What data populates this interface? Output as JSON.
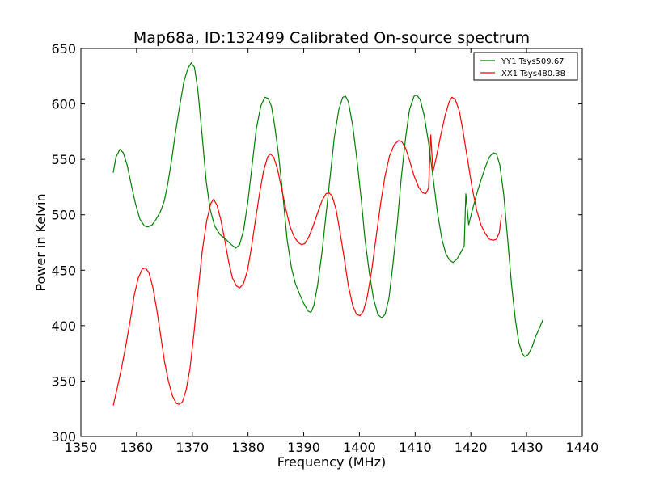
{
  "chart_data": {
    "type": "line",
    "title": "Map68a, ID:132499 Calibrated On-source spectrum",
    "xlabel": "Frequency (MHz)",
    "ylabel": "Power in Kelvin",
    "xlim": [
      1350,
      1440
    ],
    "ylim": [
      300,
      650
    ],
    "xticks": [
      1350,
      1360,
      1370,
      1380,
      1390,
      1400,
      1410,
      1420,
      1430,
      1440
    ],
    "yticks": [
      300,
      350,
      400,
      450,
      500,
      550,
      600,
      650
    ],
    "grid": false,
    "legend_position": "top-right",
    "series": [
      {
        "name": "YY1 Tsys509.67",
        "color": "#008000",
        "points": [
          [
            1355.8,
            538
          ],
          [
            1356.3,
            552
          ],
          [
            1357.0,
            559
          ],
          [
            1357.6,
            556
          ],
          [
            1358.3,
            545
          ],
          [
            1359.0,
            528
          ],
          [
            1359.8,
            510
          ],
          [
            1360.6,
            496
          ],
          [
            1361.4,
            490
          ],
          [
            1362.0,
            489
          ],
          [
            1362.8,
            491
          ],
          [
            1363.5,
            496
          ],
          [
            1364.3,
            503
          ],
          [
            1365.0,
            513
          ],
          [
            1365.6,
            528
          ],
          [
            1366.3,
            550
          ],
          [
            1367.0,
            575
          ],
          [
            1367.8,
            600
          ],
          [
            1368.5,
            620
          ],
          [
            1369.2,
            632
          ],
          [
            1369.8,
            637
          ],
          [
            1370.4,
            633
          ],
          [
            1371.0,
            612
          ],
          [
            1371.7,
            575
          ],
          [
            1372.5,
            530
          ],
          [
            1373.2,
            505
          ],
          [
            1374.0,
            490
          ],
          [
            1375.0,
            482
          ],
          [
            1376.0,
            478
          ],
          [
            1377.0,
            473
          ],
          [
            1377.8,
            470
          ],
          [
            1378.5,
            473
          ],
          [
            1379.2,
            486
          ],
          [
            1380.0,
            513
          ],
          [
            1380.8,
            548
          ],
          [
            1381.5,
            578
          ],
          [
            1382.3,
            598
          ],
          [
            1383.0,
            606
          ],
          [
            1383.6,
            605
          ],
          [
            1384.2,
            598
          ],
          [
            1384.8,
            580
          ],
          [
            1385.5,
            553
          ],
          [
            1386.3,
            515
          ],
          [
            1387.0,
            478
          ],
          [
            1387.8,
            452
          ],
          [
            1388.5,
            438
          ],
          [
            1389.3,
            428
          ],
          [
            1390.0,
            420
          ],
          [
            1390.8,
            413
          ],
          [
            1391.3,
            412
          ],
          [
            1391.8,
            418
          ],
          [
            1392.5,
            437
          ],
          [
            1393.3,
            467
          ],
          [
            1394.0,
            500
          ],
          [
            1394.8,
            537
          ],
          [
            1395.5,
            570
          ],
          [
            1396.3,
            595
          ],
          [
            1397.0,
            606
          ],
          [
            1397.5,
            607
          ],
          [
            1398.0,
            602
          ],
          [
            1398.8,
            580
          ],
          [
            1399.5,
            552
          ],
          [
            1400.3,
            515
          ],
          [
            1401.0,
            478
          ],
          [
            1401.8,
            447
          ],
          [
            1402.5,
            425
          ],
          [
            1403.3,
            410
          ],
          [
            1404.0,
            407
          ],
          [
            1404.6,
            410
          ],
          [
            1405.3,
            425
          ],
          [
            1406.0,
            455
          ],
          [
            1406.8,
            493
          ],
          [
            1407.5,
            533
          ],
          [
            1408.3,
            570
          ],
          [
            1409.0,
            595
          ],
          [
            1409.8,
            607
          ],
          [
            1410.3,
            608
          ],
          [
            1410.9,
            604
          ],
          [
            1411.6,
            590
          ],
          [
            1412.4,
            565
          ],
          [
            1413.2,
            534
          ],
          [
            1414.0,
            502
          ],
          [
            1414.8,
            478
          ],
          [
            1415.5,
            465
          ],
          [
            1416.2,
            459
          ],
          [
            1416.8,
            457
          ],
          [
            1417.5,
            460
          ],
          [
            1418.2,
            466
          ],
          [
            1418.8,
            472
          ],
          [
            1419.1,
            519
          ],
          [
            1419.6,
            491
          ],
          [
            1420.3,
            505
          ],
          [
            1421.0,
            518
          ],
          [
            1421.8,
            531
          ],
          [
            1422.6,
            543
          ],
          [
            1423.3,
            552
          ],
          [
            1424.0,
            556
          ],
          [
            1424.6,
            555
          ],
          [
            1425.2,
            545
          ],
          [
            1425.9,
            518
          ],
          [
            1426.6,
            478
          ],
          [
            1427.3,
            437
          ],
          [
            1428.0,
            405
          ],
          [
            1428.6,
            385
          ],
          [
            1429.2,
            375
          ],
          [
            1429.7,
            372
          ],
          [
            1430.3,
            374
          ],
          [
            1431.0,
            381
          ],
          [
            1431.7,
            391
          ],
          [
            1432.5,
            400
          ],
          [
            1433.0,
            406
          ]
        ]
      },
      {
        "name": "XX1 Tsys480.38",
        "color": "#ff0000",
        "points": [
          [
            1355.8,
            328
          ],
          [
            1356.5,
            343
          ],
          [
            1357.3,
            362
          ],
          [
            1358.1,
            383
          ],
          [
            1358.9,
            406
          ],
          [
            1359.6,
            428
          ],
          [
            1360.3,
            443
          ],
          [
            1361.0,
            451
          ],
          [
            1361.6,
            452
          ],
          [
            1362.2,
            448
          ],
          [
            1362.9,
            435
          ],
          [
            1363.6,
            415
          ],
          [
            1364.3,
            392
          ],
          [
            1365.0,
            368
          ],
          [
            1365.7,
            350
          ],
          [
            1366.4,
            337
          ],
          [
            1367.1,
            330
          ],
          [
            1367.6,
            329
          ],
          [
            1368.2,
            331
          ],
          [
            1368.9,
            342
          ],
          [
            1369.6,
            362
          ],
          [
            1370.3,
            393
          ],
          [
            1371.0,
            430
          ],
          [
            1371.8,
            468
          ],
          [
            1372.6,
            495
          ],
          [
            1373.3,
            510
          ],
          [
            1373.8,
            514
          ],
          [
            1374.4,
            509
          ],
          [
            1375.1,
            496
          ],
          [
            1375.8,
            478
          ],
          [
            1376.5,
            458
          ],
          [
            1377.2,
            443
          ],
          [
            1377.9,
            436
          ],
          [
            1378.5,
            434
          ],
          [
            1379.2,
            438
          ],
          [
            1379.9,
            450
          ],
          [
            1380.6,
            470
          ],
          [
            1381.3,
            494
          ],
          [
            1382.1,
            520
          ],
          [
            1382.8,
            540
          ],
          [
            1383.5,
            552
          ],
          [
            1384.0,
            555
          ],
          [
            1384.6,
            552
          ],
          [
            1385.3,
            541
          ],
          [
            1386.0,
            524
          ],
          [
            1386.8,
            505
          ],
          [
            1387.5,
            490
          ],
          [
            1388.3,
            480
          ],
          [
            1389.0,
            475
          ],
          [
            1389.6,
            473
          ],
          [
            1390.2,
            474
          ],
          [
            1390.9,
            480
          ],
          [
            1391.7,
            490
          ],
          [
            1392.5,
            502
          ],
          [
            1393.3,
            513
          ],
          [
            1394.0,
            519
          ],
          [
            1394.5,
            520
          ],
          [
            1395.1,
            517
          ],
          [
            1395.8,
            505
          ],
          [
            1396.5,
            485
          ],
          [
            1397.3,
            460
          ],
          [
            1398.0,
            436
          ],
          [
            1398.8,
            418
          ],
          [
            1399.5,
            410
          ],
          [
            1400.1,
            409
          ],
          [
            1400.7,
            413
          ],
          [
            1401.4,
            426
          ],
          [
            1402.2,
            450
          ],
          [
            1403.0,
            480
          ],
          [
            1403.8,
            510
          ],
          [
            1404.6,
            535
          ],
          [
            1405.4,
            553
          ],
          [
            1406.2,
            563
          ],
          [
            1407.0,
            567
          ],
          [
            1407.6,
            566
          ],
          [
            1408.3,
            560
          ],
          [
            1409.0,
            549
          ],
          [
            1409.8,
            535
          ],
          [
            1410.6,
            525
          ],
          [
            1411.3,
            520
          ],
          [
            1411.9,
            519
          ],
          [
            1412.4,
            524
          ],
          [
            1412.8,
            572
          ],
          [
            1413.2,
            539
          ],
          [
            1413.8,
            552
          ],
          [
            1414.6,
            572
          ],
          [
            1415.4,
            590
          ],
          [
            1416.1,
            602
          ],
          [
            1416.6,
            606
          ],
          [
            1417.2,
            604
          ],
          [
            1417.9,
            594
          ],
          [
            1418.6,
            575
          ],
          [
            1419.4,
            550
          ],
          [
            1420.2,
            525
          ],
          [
            1421.0,
            505
          ],
          [
            1421.8,
            491
          ],
          [
            1422.6,
            483
          ],
          [
            1423.3,
            478
          ],
          [
            1424.0,
            477
          ],
          [
            1424.6,
            478
          ],
          [
            1425.1,
            484
          ],
          [
            1425.5,
            500
          ]
        ]
      }
    ]
  }
}
